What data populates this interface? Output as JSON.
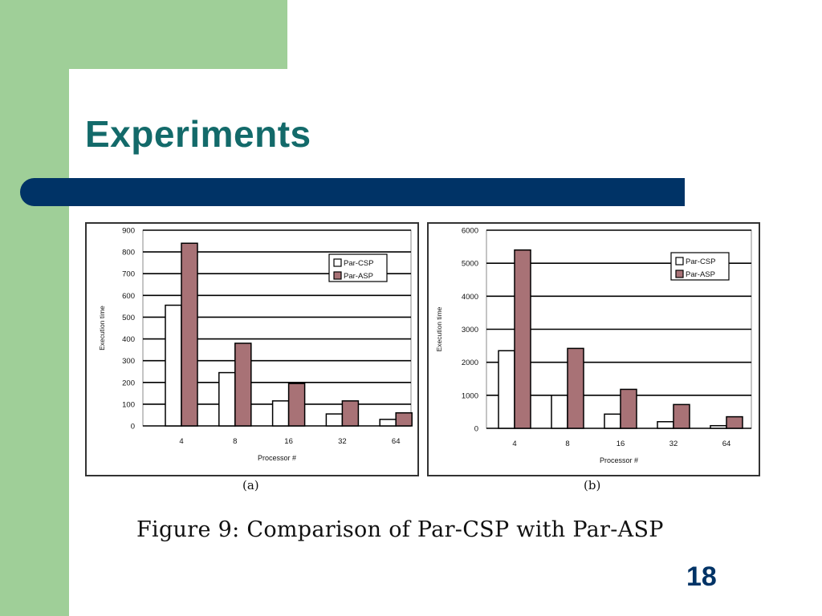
{
  "slide": {
    "title": "Experiments",
    "caption": "Figure 9: Comparison of Par-CSP with Par-ASP",
    "page_number": "18",
    "colors": {
      "green": "#9fcf98",
      "navy": "#003366",
      "title": "#136a6a",
      "csp": "#ffffff",
      "asp": "#a87276"
    }
  },
  "chart_data": [
    {
      "type": "bar",
      "panel_label": "(a)",
      "categories": [
        "4",
        "8",
        "16",
        "32",
        "64"
      ],
      "xlabel": "Processor #",
      "ylabel": "Execution time",
      "ylim": [
        0,
        900
      ],
      "yticks": [
        0,
        100,
        200,
        300,
        400,
        500,
        600,
        700,
        800,
        900
      ],
      "grid": true,
      "legend": "top-right",
      "series": [
        {
          "name": "Par-CSP",
          "values": [
            555,
            245,
            115,
            55,
            30
          ]
        },
        {
          "name": "Par-ASP",
          "values": [
            840,
            380,
            195,
            115,
            60
          ]
        }
      ]
    },
    {
      "type": "bar",
      "panel_label": "(b)",
      "categories": [
        "4",
        "8",
        "16",
        "32",
        "64"
      ],
      "xlabel": "Processor #",
      "ylabel": "Execution time",
      "ylim": [
        0,
        6000
      ],
      "yticks": [
        0,
        1000,
        2000,
        3000,
        4000,
        5000,
        6000
      ],
      "grid": true,
      "legend": "top-right",
      "series": [
        {
          "name": "Par-CSP",
          "values": [
            2350,
            1000,
            430,
            200,
            80
          ]
        },
        {
          "name": "Par-ASP",
          "values": [
            5400,
            2420,
            1180,
            720,
            350
          ]
        }
      ]
    }
  ]
}
